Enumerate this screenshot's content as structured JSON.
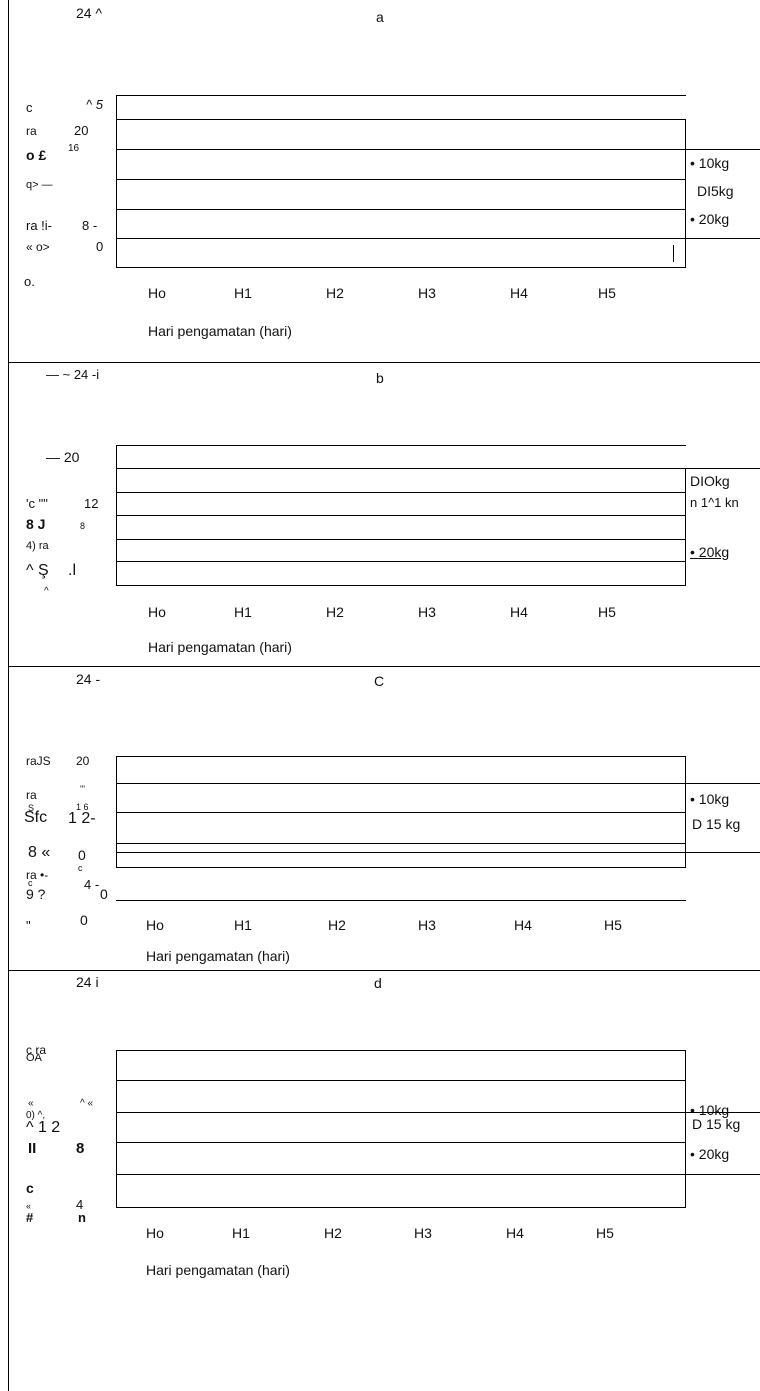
{
  "xaxis_label": "Hari pengamatan (hari)",
  "xticks": [
    "Ho",
    "H1",
    "H2",
    "H3",
    "H4",
    "H5"
  ],
  "panels": [
    {
      "letter": "a",
      "y_top": "24 ^",
      "ytexts": [
        "c",
        "^ 5",
        "ra",
        "20",
        "o £",
        "16",
        "q> —",
        "ra !i-",
        "8 -",
        "« o>",
        "0",
        "o."
      ],
      "legend": [
        "• 10kg",
        "DI5kg",
        "• 20kg"
      ]
    },
    {
      "letter": "b",
      "y_top": "— ~ 24 -i",
      "ytexts": [
        "— 20",
        "'c \"\"",
        "12",
        "8 J",
        "8",
        "4) ra",
        "^ Ş",
        ".l",
        "^"
      ],
      "legend": [
        "DIOkg",
        "n 1^1 kn",
        "• 20kg"
      ]
    },
    {
      "letter": "C",
      "y_top": "24 -",
      "ytexts": [
        "raJS",
        "20",
        "ra",
        "'\"",
        "S",
        "1 6",
        "Sfc",
        "1 2-",
        "8 «",
        "0",
        "ra •-",
        "c",
        "c",
        "4 -",
        "9 ?",
        "0",
        "\"",
        "0"
      ],
      "legend": [
        "• 10kg",
        "D 15 kg"
      ]
    },
    {
      "letter": "d",
      "y_top": "24 i",
      "ytexts": [
        "c ra",
        "OA",
        "«",
        "^ «",
        "0) ^,",
        "^ 1 2",
        "II",
        "8",
        "c",
        "«",
        "4",
        "#",
        "n"
      ],
      "legend": [
        "• 10kg",
        "D 15 kg",
        "• 20kg"
      ]
    }
  ]
}
